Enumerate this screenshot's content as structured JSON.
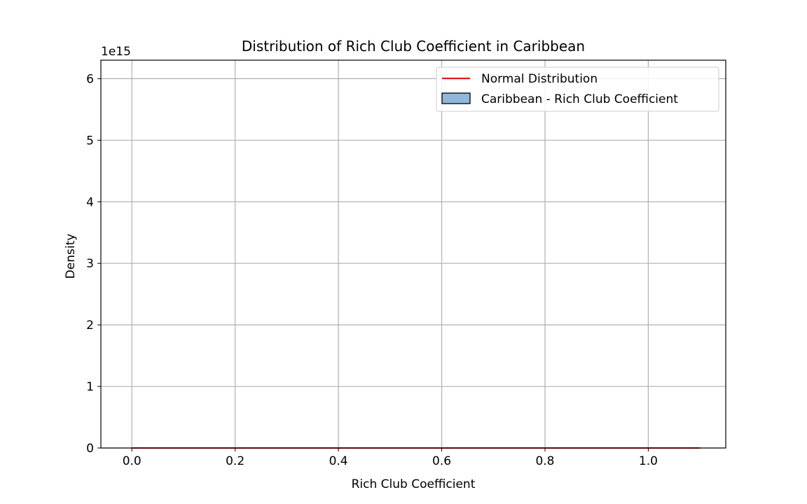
{
  "chart_data": {
    "type": "histogram",
    "title": "Distribution of Rich Club Coefficient in Caribbean",
    "xlabel": "Rich Club Coefficient",
    "ylabel": "Density",
    "y_offset_text": "1e15",
    "xlim": [
      -0.06,
      1.15
    ],
    "ylim": [
      0,
      6.3
    ],
    "xticks": [
      0.0,
      0.2,
      0.4,
      0.6,
      0.8,
      1.0
    ],
    "xtick_labels": [
      "0.0",
      "0.2",
      "0.4",
      "0.6",
      "0.8",
      "1.0"
    ],
    "yticks": [
      0,
      1,
      2,
      3,
      4,
      5,
      6
    ],
    "ytick_labels": [
      "0",
      "1",
      "2",
      "3",
      "4",
      "5",
      "6"
    ],
    "grid": true,
    "legend_position": "upper right",
    "series": [
      {
        "name": "Normal Distribution",
        "kind": "line",
        "color": "#e41a1c",
        "x": [
          0.0,
          0.2,
          0.4,
          0.6,
          0.8,
          1.0,
          1.1
        ],
        "y": [
          0,
          0,
          0,
          0,
          0,
          0,
          0
        ]
      },
      {
        "name": "Caribbean - Rich Club Coefficient",
        "kind": "histogram",
        "color": "#8fb8dc",
        "edgecolor": "#000000",
        "bins": [],
        "values": []
      }
    ]
  }
}
